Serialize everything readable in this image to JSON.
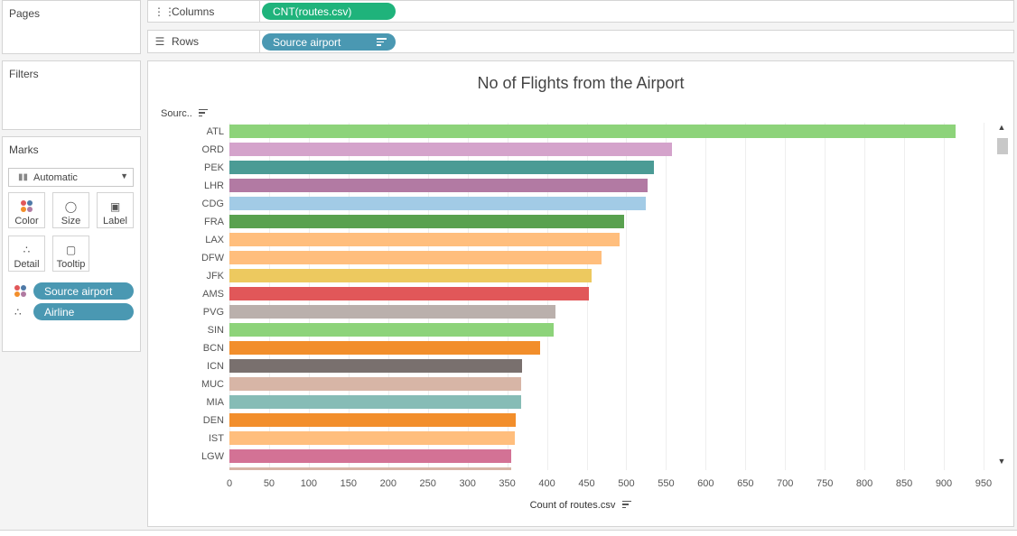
{
  "pages": {
    "title": "Pages"
  },
  "filters": {
    "title": "Filters"
  },
  "marks": {
    "title": "Marks",
    "mark_type": "Automatic",
    "buttons": [
      {
        "label": "Color",
        "icon": "color-dots-icon"
      },
      {
        "label": "Size",
        "icon": "size-icon"
      },
      {
        "label": "Label",
        "icon": "label-icon"
      },
      {
        "label": "Detail",
        "icon": "detail-icon"
      },
      {
        "label": "Tooltip",
        "icon": "tooltip-icon"
      }
    ],
    "fields": [
      {
        "label": "Source airport",
        "encoding": "color"
      },
      {
        "label": "Airline",
        "encoding": "detail"
      }
    ]
  },
  "shelves": {
    "columns": {
      "label": "Columns",
      "icon": "columns-icon",
      "pill": "CNT(routes.csv)"
    },
    "rows": {
      "label": "Rows",
      "icon": "rows-icon",
      "pill": "Source airport"
    }
  },
  "chart_data": {
    "type": "bar",
    "orientation": "horizontal",
    "title": "No of Flights from the Airport",
    "row_header": "Sourc..",
    "xlabel": "Count of routes.csv",
    "xlim": [
      0,
      950
    ],
    "xticks": [
      0,
      50,
      100,
      150,
      200,
      250,
      300,
      350,
      400,
      450,
      500,
      550,
      600,
      650,
      700,
      750,
      800,
      850,
      900,
      950
    ],
    "categories": [
      "ATL",
      "ORD",
      "PEK",
      "LHR",
      "CDG",
      "FRA",
      "LAX",
      "DFW",
      "JFK",
      "AMS",
      "PVG",
      "SIN",
      "BCN",
      "ICN",
      "MUC",
      "MIA",
      "DEN",
      "IST",
      "LGW"
    ],
    "values": [
      915,
      558,
      535,
      527,
      524,
      497,
      492,
      469,
      456,
      453,
      411,
      408,
      391,
      369,
      367,
      367,
      361,
      359,
      355
    ],
    "colors": [
      "#8dd37a",
      "#d4a3cb",
      "#4b9b95",
      "#b27aa3",
      "#a2cbe6",
      "#59a14f",
      "#ffbe7d",
      "#ffbe7d",
      "#edc95f",
      "#e15759",
      "#bab0ac",
      "#8dd37a",
      "#f28e2b",
      "#79706e",
      "#d7b5a6",
      "#86bcb6",
      "#f28e2b",
      "#ffbe7d",
      "#d37295"
    ],
    "partial_bar_color": "#d7b5a6",
    "partial_bar_value": 355,
    "grid": true,
    "legend": "none"
  }
}
